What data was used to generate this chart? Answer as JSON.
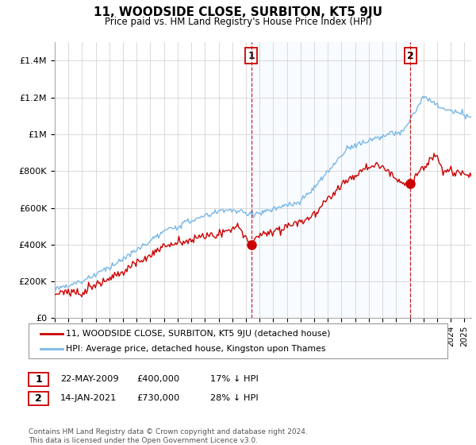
{
  "title": "11, WOODSIDE CLOSE, SURBITON, KT5 9JU",
  "subtitle": "Price paid vs. HM Land Registry's House Price Index (HPI)",
  "legend_line1": "11, WOODSIDE CLOSE, SURBITON, KT5 9JU (detached house)",
  "legend_line2": "HPI: Average price, detached house, Kingston upon Thames",
  "sale1_date": "22-MAY-2009",
  "sale1_price": "£400,000",
  "sale1_hpi": "17% ↓ HPI",
  "sale2_date": "14-JAN-2021",
  "sale2_price": "£730,000",
  "sale2_hpi": "28% ↓ HPI",
  "footer": "Contains HM Land Registry data © Crown copyright and database right 2024.\nThis data is licensed under the Open Government Licence v3.0.",
  "price_line_color": "#cc0000",
  "hpi_line_color": "#7ab8e8",
  "shade_color": "#ddeeff",
  "sale_marker_color": "#cc0000",
  "vline_color": "#cc0000",
  "ylim": [
    0,
    1500000
  ],
  "yticks": [
    0,
    200000,
    400000,
    600000,
    800000,
    1000000,
    1200000,
    1400000
  ],
  "ytick_labels": [
    "£0",
    "£200K",
    "£400K",
    "£600K",
    "£800K",
    "£1M",
    "£1.2M",
    "£1.4M"
  ],
  "sale1_x": 2009.38,
  "sale1_y": 400000,
  "sale2_x": 2021.04,
  "sale2_y": 730000,
  "xmin": 1995,
  "xmax": 2025.5
}
